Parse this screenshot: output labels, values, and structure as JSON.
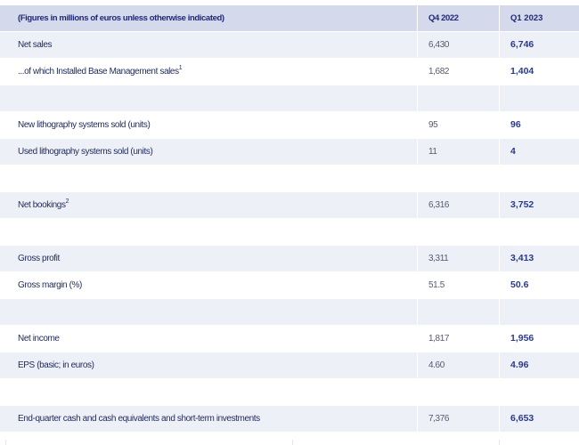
{
  "header": {
    "label": "(Figures in millions of euros unless otherwise indicated)",
    "q4_2022": "Q4 2022",
    "q1_2023": "Q1 2023"
  },
  "rows": [
    {
      "label": "Net sales",
      "sup": "",
      "q4": "6,430",
      "q1": "6,746"
    },
    {
      "label": "...of which Installed Base Management sales",
      "sup": "1",
      "q4": "1,682",
      "q1": "1,404"
    },
    {
      "label": "",
      "sup": "",
      "q4": "",
      "q1": ""
    },
    {
      "label": "New lithography systems sold (units)",
      "sup": "",
      "q4": "95",
      "q1": "96"
    },
    {
      "label": "Used lithography systems sold (units)",
      "sup": "",
      "q4": "11",
      "q1": "4"
    },
    {
      "label": "",
      "sup": "",
      "q4": "",
      "q1": ""
    },
    {
      "label": "Net bookings",
      "sup": "2",
      "q4": "6,316",
      "q1": "3,752"
    },
    {
      "label": "",
      "sup": "",
      "q4": "",
      "q1": ""
    },
    {
      "label": "Gross profit",
      "sup": "",
      "q4": "3,311",
      "q1": "3,413"
    },
    {
      "label": "Gross margin (%)",
      "sup": "",
      "q4": "51.5",
      "q1": "50.6"
    },
    {
      "label": "",
      "sup": "",
      "q4": "",
      "q1": ""
    },
    {
      "label": "Net income",
      "sup": "",
      "q4": "1,817",
      "q1": "1,956"
    },
    {
      "label": "EPS (basic; in euros)",
      "sup": "",
      "q4": "4.60",
      "q1": "4.96"
    },
    {
      "label": "",
      "sup": "",
      "q4": "",
      "q1": ""
    },
    {
      "label": "End-quarter cash and cash equivalents and short-term investments",
      "sup": "",
      "q4": "7,376",
      "q1": "6,653"
    }
  ]
}
